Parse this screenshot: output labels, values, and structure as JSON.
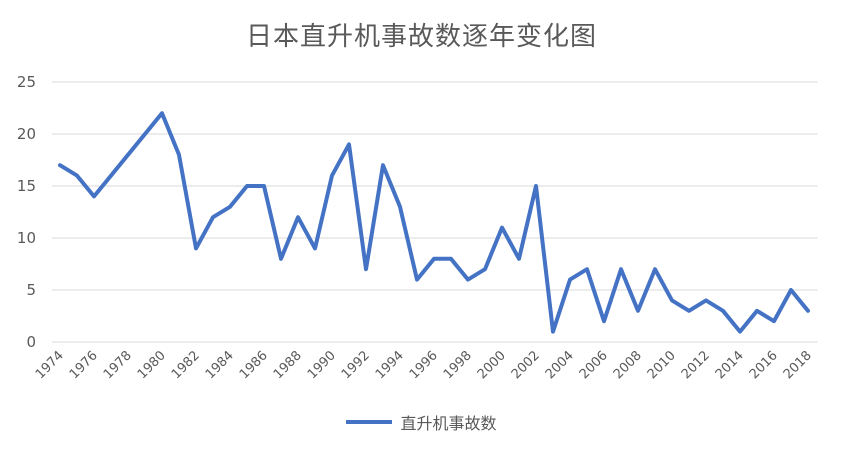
{
  "chart_data": {
    "type": "line",
    "title": "日本直升机事故数逐年变化图",
    "xlabel": "",
    "ylabel": "",
    "ylim": [
      0,
      25
    ],
    "yticks": [
      0,
      5,
      10,
      15,
      20,
      25
    ],
    "x": [
      1974,
      1975,
      1976,
      1977,
      1978,
      1979,
      1980,
      1981,
      1982,
      1983,
      1984,
      1985,
      1986,
      1987,
      1988,
      1989,
      1990,
      1991,
      1992,
      1993,
      1994,
      1995,
      1996,
      1997,
      1998,
      1999,
      2000,
      2001,
      2002,
      2003,
      2004,
      2005,
      2006,
      2007,
      2008,
      2009,
      2010,
      2011,
      2012,
      2013,
      2014,
      2015,
      2016,
      2017,
      2018
    ],
    "xtick_labels": [
      "1974",
      "1976",
      "1978",
      "1980",
      "1982",
      "1984",
      "1986",
      "1988",
      "1990",
      "1992",
      "1994",
      "1996",
      "1998",
      "2000",
      "2002",
      "2004",
      "2006",
      "2008",
      "2010",
      "2012",
      "2014",
      "2016",
      "2018"
    ],
    "series": [
      {
        "name": "直升机事故数",
        "color": "#4472c4",
        "values": [
          17,
          16,
          14,
          16,
          18,
          20,
          22,
          18,
          9,
          12,
          13,
          15,
          15,
          8,
          12,
          9,
          16,
          19,
          7,
          17,
          13,
          6,
          8,
          8,
          6,
          7,
          11,
          8,
          15,
          1,
          6,
          7,
          2,
          7,
          3,
          7,
          4,
          3,
          4,
          3,
          1,
          3,
          2,
          5,
          3
        ]
      }
    ],
    "grid": true,
    "legend_position": "bottom"
  }
}
